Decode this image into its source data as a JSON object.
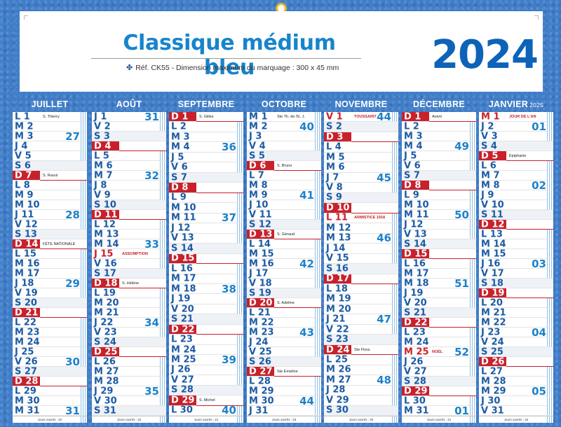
{
  "title": "Classique médium bleu",
  "year": "2024",
  "reference": "Réf. CK55 - Dimension maximum du marquage : 300 x 45 mm",
  "colors": {
    "brand": "#1784cc",
    "sunday": "#c8212b",
    "header": "#1b4f99"
  },
  "months": [
    {
      "name": "JUILLET",
      "suffix": "",
      "footer": "Jours ouvrés : 22",
      "holidays": [
        14
      ],
      "saints": {
        "1": "S. Thierry",
        "14": "FÊTE NATIONALE",
        "7": "S. Raoul"
      },
      "weeks": [
        [
          "27",
          3
        ],
        [
          "28",
          11
        ],
        [
          "29",
          18
        ],
        [
          "30",
          26
        ],
        [
          "31",
          31
        ]
      ]
    },
    {
      "name": "AOÛT",
      "suffix": "",
      "footer": "Jours ouvrés : 22",
      "holidays": [
        15
      ],
      "saints": {
        "15": "ASSOMPTION",
        "18": "S. Hélène"
      },
      "weeks": [
        [
          "31",
          1
        ],
        [
          "32",
          7
        ],
        [
          "33",
          14
        ],
        [
          "34",
          22
        ],
        [
          "35",
          29
        ]
      ]
    },
    {
      "name": "SEPTEMBRE",
      "suffix": "",
      "footer": "Jours ouvrés : 21",
      "holidays": [],
      "saints": {
        "1": "S. Gilles",
        "29": "S. Michel"
      },
      "weeks": [
        [
          "36",
          4
        ],
        [
          "37",
          11
        ],
        [
          "38",
          18
        ],
        [
          "39",
          25
        ],
        [
          "40",
          30
        ]
      ]
    },
    {
      "name": "OCTOBRE",
      "suffix": "",
      "footer": "Jours ouvrés : 23",
      "holidays": [],
      "saints": {
        "1": "Ste Th. de l'E. J.",
        "6": "S. Bruno",
        "13": "S. Géraud",
        "20": "S. Adeline",
        "27": "Ste Emeline"
      },
      "weeks": [
        [
          "40",
          2
        ],
        [
          "41",
          9
        ],
        [
          "42",
          16
        ],
        [
          "43",
          23
        ],
        [
          "44",
          30
        ]
      ]
    },
    {
      "name": "NOVEMBRE",
      "suffix": "",
      "footer": "Jours ouvrés : 20",
      "holidays": [
        1,
        11
      ],
      "saints": {
        "1": "TOUSSAINT",
        "11": "ARMISTICE 1918",
        "24": "Ste Flora"
      },
      "weeks": [
        [
          "44",
          1
        ],
        [
          "45",
          7
        ],
        [
          "46",
          13
        ],
        [
          "47",
          21
        ],
        [
          "48",
          27
        ]
      ]
    },
    {
      "name": "DÉCEMBRE",
      "suffix": "",
      "footer": "Jours ouvrés : 21",
      "holidays": [
        25
      ],
      "saints": {
        "1": "Avent",
        "25": "NOËL"
      },
      "weeks": [
        [
          "49",
          4
        ],
        [
          "50",
          11
        ],
        [
          "51",
          18
        ],
        [
          "52",
          25
        ],
        [
          "01",
          31
        ]
      ]
    },
    {
      "name": "JANVIER",
      "suffix": "2025",
      "footer": "Jours ouvrés : 22",
      "holidays": [
        1
      ],
      "saints": {
        "1": "JOUR DE L'AN",
        "5": "Épiphanie"
      },
      "weeks": [
        [
          "01",
          2
        ],
        [
          "02",
          8
        ],
        [
          "03",
          16
        ],
        [
          "04",
          23
        ],
        [
          "05",
          29
        ]
      ]
    }
  ],
  "first_weekday": [
    0,
    3,
    6,
    1,
    4,
    6,
    2
  ],
  "day_counts": [
    31,
    31,
    30,
    31,
    30,
    31,
    31
  ],
  "day_letters": [
    "L",
    "M",
    "M",
    "J",
    "V",
    "S",
    "D"
  ]
}
